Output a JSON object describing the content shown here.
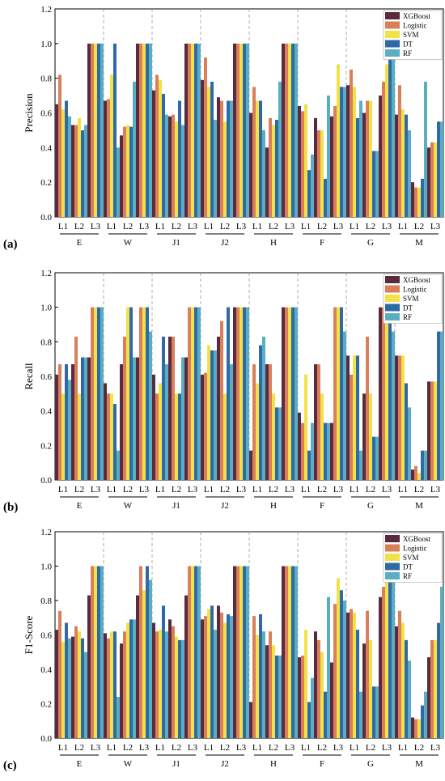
{
  "figure": {
    "colors": {
      "XGBoost": "#5a2a3e",
      "Logistic": "#d9805a",
      "SVM": "#f2e24a",
      "DT": "#2f6aa6",
      "RF": "#5aaec3"
    }
  },
  "chart_data": [
    {
      "type": "bar",
      "panel_label": "(a)",
      "ylabel": "Precision",
      "ylim": [
        0,
        1.2
      ],
      "yticks": [
        "0.0",
        "0.2",
        "0.4",
        "0.6",
        "0.8",
        "1.0",
        "1.2"
      ],
      "groups": [
        "E",
        "W",
        "J1",
        "J2",
        "H",
        "F",
        "G",
        "M"
      ],
      "subcategories": [
        "L1",
        "L2",
        "L3"
      ],
      "legend": [
        "XGBoost",
        "Logistic",
        "SVM",
        "DT",
        "RF"
      ],
      "legend_position": "top-right",
      "series": [
        {
          "name": "XGBoost",
          "values": [
            [
              0.65,
              0.53,
              1.0
            ],
            [
              0.67,
              0.47,
              1.0
            ],
            [
              0.73,
              0.58,
              1.0
            ],
            [
              0.79,
              0.69,
              1.0
            ],
            [
              0.6,
              0.4,
              1.0
            ],
            [
              0.64,
              0.57,
              0.58
            ],
            [
              0.76,
              0.6,
              0.7
            ],
            [
              0.59,
              0.2,
              0.4
            ]
          ]
        },
        {
          "name": "Logistic",
          "values": [
            [
              0.82,
              0.53,
              1.0
            ],
            [
              0.68,
              0.52,
              1.0
            ],
            [
              0.82,
              0.59,
              1.0
            ],
            [
              0.92,
              0.67,
              1.0
            ],
            [
              0.75,
              0.57,
              1.0
            ],
            [
              0.61,
              0.5,
              0.64
            ],
            [
              0.85,
              0.67,
              0.78
            ],
            [
              0.76,
              0.17,
              0.43
            ]
          ]
        },
        {
          "name": "SVM",
          "values": [
            [
              0.62,
              0.57,
              1.0
            ],
            [
              0.82,
              0.53,
              1.0
            ],
            [
              0.79,
              0.55,
              1.0
            ],
            [
              0.75,
              0.55,
              1.0
            ],
            [
              0.67,
              0.53,
              1.0
            ],
            [
              0.65,
              0.5,
              0.88
            ],
            [
              0.75,
              0.67,
              0.88
            ],
            [
              0.62,
              0.17,
              0.43
            ]
          ]
        },
        {
          "name": "DT",
          "values": [
            [
              0.67,
              0.5,
              1.0
            ],
            [
              1.0,
              0.52,
              1.0
            ],
            [
              0.71,
              0.67,
              1.0
            ],
            [
              0.78,
              0.67,
              1.0
            ],
            [
              0.67,
              0.56,
              1.0
            ],
            [
              0.27,
              0.22,
              0.75
            ],
            [
              0.57,
              0.38,
              1.0
            ],
            [
              0.59,
              0.22,
              0.55
            ]
          ]
        },
        {
          "name": "RF",
          "values": [
            [
              0.58,
              0.53,
              1.0
            ],
            [
              0.4,
              0.78,
              1.0
            ],
            [
              0.59,
              0.53,
              1.0
            ],
            [
              0.56,
              0.67,
              1.0
            ],
            [
              0.5,
              0.78,
              1.0
            ],
            [
              0.36,
              0.7,
              0.75
            ],
            [
              0.67,
              0.38,
              1.0
            ],
            [
              0.5,
              0.78,
              0.55
            ]
          ]
        }
      ]
    },
    {
      "type": "bar",
      "panel_label": "(b)",
      "ylabel": "Recall",
      "ylim": [
        0,
        1.2
      ],
      "yticks": [
        "0.0",
        "0.2",
        "0.4",
        "0.6",
        "0.8",
        "1.0",
        "1.2"
      ],
      "groups": [
        "E",
        "W",
        "J1",
        "J2",
        "H",
        "F",
        "G",
        "M"
      ],
      "subcategories": [
        "L1",
        "L2",
        "L3"
      ],
      "legend": [
        "XGBoost",
        "Logistic",
        "SVM",
        "DT",
        "RF"
      ],
      "legend_position": "top-right",
      "series": [
        {
          "name": "XGBoost",
          "values": [
            [
              0.61,
              0.67,
              0.71
            ],
            [
              0.56,
              0.67,
              0.71
            ],
            [
              0.61,
              0.83,
              0.71
            ],
            [
              0.61,
              0.83,
              1.0
            ],
            [
              0.17,
              0.67,
              1.0
            ],
            [
              0.39,
              0.67,
              0.33
            ],
            [
              0.72,
              0.5,
              1.0
            ],
            [
              0.72,
              0.06,
              0.57
            ]
          ]
        },
        {
          "name": "Logistic",
          "values": [
            [
              0.67,
              0.83,
              1.0
            ],
            [
              0.5,
              0.83,
              1.0
            ],
            [
              0.5,
              0.83,
              1.0
            ],
            [
              0.62,
              0.92,
              1.0
            ],
            [
              0.67,
              0.67,
              1.0
            ],
            [
              0.33,
              0.67,
              1.0
            ],
            [
              0.61,
              0.83,
              1.0
            ],
            [
              0.72,
              0.08,
              0.57
            ]
          ]
        },
        {
          "name": "SVM",
          "values": [
            [
              0.5,
              0.5,
              1.0
            ],
            [
              0.5,
              1.0,
              1.0
            ],
            [
              0.56,
              0.5,
              1.0
            ],
            [
              0.78,
              0.5,
              1.0
            ],
            [
              0.56,
              0.5,
              1.0
            ],
            [
              0.61,
              0.5,
              1.0
            ],
            [
              0.72,
              0.5,
              1.0
            ],
            [
              0.72,
              0.04,
              0.57
            ]
          ]
        },
        {
          "name": "DT",
          "values": [
            [
              0.67,
              0.71,
              1.0
            ],
            [
              0.44,
              1.0,
              1.0
            ],
            [
              0.83,
              0.5,
              1.0
            ],
            [
              0.75,
              1.0,
              1.0
            ],
            [
              0.78,
              0.42,
              1.0
            ],
            [
              0.17,
              0.33,
              1.0
            ],
            [
              0.72,
              0.25,
              1.0
            ],
            [
              0.56,
              0.17,
              0.86
            ]
          ]
        },
        {
          "name": "RF",
          "values": [
            [
              0.58,
              0.71,
              1.0
            ],
            [
              0.17,
              0.71,
              0.86
            ],
            [
              0.67,
              0.71,
              1.0
            ],
            [
              0.75,
              0.67,
              1.0
            ],
            [
              0.83,
              0.42,
              1.0
            ],
            [
              0.33,
              0.33,
              0.86
            ],
            [
              0.17,
              0.25,
              0.86
            ],
            [
              0.42,
              0.17,
              0.86
            ]
          ]
        }
      ]
    },
    {
      "type": "bar",
      "panel_label": "(c)",
      "ylabel": "F1-Score",
      "ylim": [
        0,
        1.2
      ],
      "yticks": [
        "0.0",
        "0.2",
        "0.4",
        "0.6",
        "0.8",
        "1.0",
        "1.2"
      ],
      "groups": [
        "E",
        "W",
        "J1",
        "J2",
        "H",
        "F",
        "G",
        "M"
      ],
      "subcategories": [
        "L1",
        "L2",
        "L3"
      ],
      "legend": [
        "XGBoost",
        "Logistic",
        "SVM",
        "DT",
        "RF"
      ],
      "legend_position": "top-right",
      "series": [
        {
          "name": "XGBoost",
          "values": [
            [
              0.63,
              0.59,
              0.83
            ],
            [
              0.61,
              0.55,
              0.83
            ],
            [
              0.67,
              0.69,
              0.83
            ],
            [
              0.69,
              0.77,
              1.0
            ],
            [
              0.21,
              0.54,
              1.0
            ],
            [
              0.47,
              0.62,
              0.44
            ],
            [
              0.73,
              0.55,
              0.82
            ],
            [
              0.65,
              0.12,
              0.47
            ]
          ]
        },
        {
          "name": "Logistic",
          "values": [
            [
              0.74,
              0.65,
              1.0
            ],
            [
              0.58,
              0.62,
              1.0
            ],
            [
              0.62,
              0.65,
              1.0
            ],
            [
              0.71,
              0.73,
              1.0
            ],
            [
              0.71,
              0.62,
              1.0
            ],
            [
              0.48,
              0.57,
              0.78
            ],
            [
              0.75,
              0.74,
              0.88
            ],
            [
              0.74,
              0.11,
              0.57
            ]
          ]
        },
        {
          "name": "SVM",
          "values": [
            [
              0.56,
              0.62,
              1.0
            ],
            [
              0.62,
              0.67,
              0.86
            ],
            [
              0.63,
              0.59,
              1.0
            ],
            [
              0.75,
              0.67,
              1.0
            ],
            [
              0.6,
              0.54,
              1.0
            ],
            [
              0.63,
              0.5,
              0.93
            ],
            [
              0.73,
              0.57,
              0.91
            ],
            [
              0.67,
              0.11,
              0.57
            ]
          ]
        },
        {
          "name": "DT",
          "values": [
            [
              0.67,
              0.58,
              1.0
            ],
            [
              0.62,
              0.69,
              1.0
            ],
            [
              0.77,
              0.57,
              1.0
            ],
            [
              0.77,
              0.72,
              1.0
            ],
            [
              0.72,
              0.48,
              1.0
            ],
            [
              0.21,
              0.27,
              0.86
            ],
            [
              0.63,
              0.3,
              1.0
            ],
            [
              0.57,
              0.19,
              0.67
            ]
          ]
        },
        {
          "name": "RF",
          "values": [
            [
              0.58,
              0.5,
              1.0
            ],
            [
              0.24,
              0.69,
              0.92
            ],
            [
              0.62,
              0.57,
              1.0
            ],
            [
              0.63,
              0.71,
              1.0
            ],
            [
              0.62,
              0.48,
              1.0
            ],
            [
              0.35,
              0.82,
              0.8
            ],
            [
              0.27,
              0.3,
              0.92
            ],
            [
              0.45,
              0.27,
              0.88
            ]
          ]
        }
      ]
    }
  ]
}
